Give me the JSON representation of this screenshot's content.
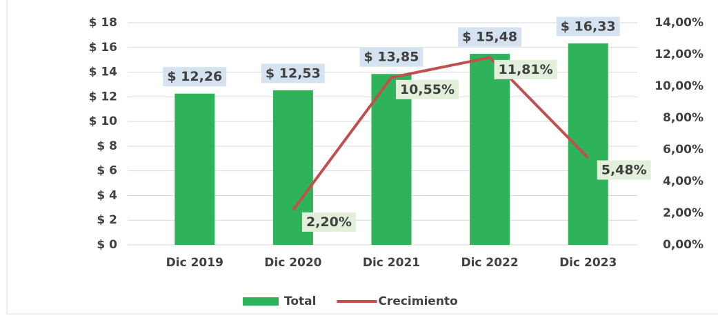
{
  "chart_data": {
    "type": "bar",
    "categories": [
      "Dic 2019",
      "Dic 2020",
      "Dic 2021",
      "Dic 2022",
      "Dic 2023"
    ],
    "series": [
      {
        "name": "Total",
        "color": "#2eb35a",
        "values": [
          12.26,
          12.53,
          13.85,
          15.48,
          16.33
        ],
        "value_labels": [
          "$ 12,26",
          "$ 12,53",
          "$ 13,85",
          "$ 15,48",
          "$ 16,33"
        ]
      },
      {
        "name": "Crecimiento",
        "type": "line",
        "axis": "y2",
        "color": "#c0504d",
        "values": [
          null,
          2.2,
          10.55,
          11.81,
          5.48
        ],
        "value_labels": [
          null,
          "2,20%",
          "10,55%",
          "11,81%",
          "5,48%"
        ]
      }
    ],
    "ylim": [
      0,
      18
    ],
    "yticks": [
      {
        "value": 0,
        "label": "$ 0"
      },
      {
        "value": 2,
        "label": "$ 2"
      },
      {
        "value": 4,
        "label": "$ 4"
      },
      {
        "value": 6,
        "label": "$ 6"
      },
      {
        "value": 8,
        "label": "$ 8"
      },
      {
        "value": 10,
        "label": "$ 10"
      },
      {
        "value": 12,
        "label": "$ 12"
      },
      {
        "value": 14,
        "label": "$ 14"
      },
      {
        "value": 16,
        "label": "$ 16"
      },
      {
        "value": 18,
        "label": "$ 18"
      }
    ],
    "y2lim": [
      0,
      14
    ],
    "y2ticks": [
      {
        "value": 0,
        "label": "0,00%"
      },
      {
        "value": 2,
        "label": "2,00%"
      },
      {
        "value": 4,
        "label": "4,00%"
      },
      {
        "value": 6,
        "label": "6,00%"
      },
      {
        "value": 8,
        "label": "8,00%"
      },
      {
        "value": 10,
        "label": "10,00%"
      },
      {
        "value": 12,
        "label": "12,00%"
      },
      {
        "value": 14,
        "label": "14,00%"
      }
    ],
    "grid": true,
    "legend": "bottom"
  }
}
